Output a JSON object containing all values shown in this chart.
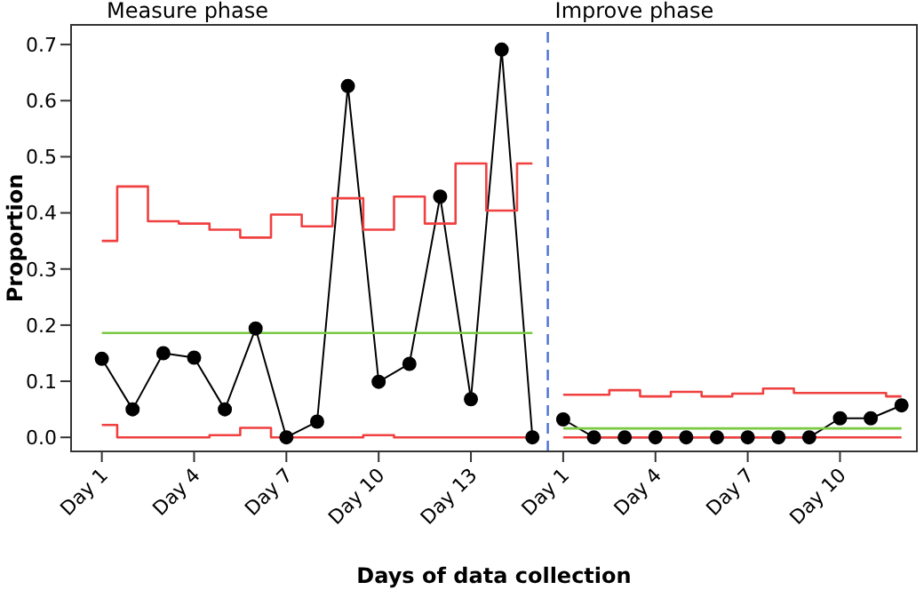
{
  "chart_data": {
    "type": "line",
    "xlabel": "Days of data collection",
    "ylabel": "Proportion",
    "categories": [
      "Day 1",
      null,
      null,
      "Day 4",
      null,
      null,
      "Day 7",
      null,
      null,
      "Day 10",
      null,
      null,
      "Day 13",
      null,
      null,
      "Day 1",
      null,
      null,
      "Day 4",
      null,
      null,
      "Day 7",
      null,
      null,
      "Day 10",
      null,
      null
    ],
    "series": [
      {
        "color": "#000000",
        "marker": "circle",
        "values": [
          0.14,
          0.05,
          0.15,
          0.142,
          0.05,
          0.194,
          0,
          0.028,
          0.626,
          0.099,
          0.131,
          0.429,
          0.068,
          0.691,
          0,
          null,
          null,
          null,
          null,
          null,
          null,
          null,
          null,
          null,
          null,
          null,
          null
        ]
      },
      {
        "color": "#000000",
        "marker": "circle",
        "values": [
          null,
          null,
          null,
          null,
          null,
          null,
          null,
          null,
          null,
          null,
          null,
          null,
          null,
          null,
          null,
          0.032,
          0,
          0,
          0,
          0,
          0,
          0,
          0,
          0,
          0.034,
          0.034,
          0.057
        ]
      },
      {
        "type": "step",
        "color": "#f04040",
        "marker": "none",
        "values": [
          0.35,
          0.447,
          0.385,
          0.381,
          0.37,
          0.356,
          0.397,
          0.376,
          0.426,
          0.37,
          0.429,
          0.381,
          0.488,
          0.404,
          0.488,
          null,
          null,
          null,
          null,
          null,
          null,
          null,
          null,
          null,
          null,
          null,
          null
        ]
      },
      {
        "type": "step",
        "color": "#f04040",
        "marker": "none",
        "values": [
          null,
          null,
          null,
          null,
          null,
          null,
          null,
          null,
          null,
          null,
          null,
          null,
          null,
          null,
          null,
          0.076,
          0.076,
          0.084,
          0.073,
          0.081,
          0.073,
          0.078,
          0.087,
          0.079,
          0.079,
          0.079,
          0.073
        ]
      },
      {
        "type": "step",
        "color": "#f04040",
        "marker": "none",
        "values": [
          0.022,
          0,
          0,
          0,
          0.004,
          0.017,
          0,
          0,
          0,
          0.004,
          0,
          0,
          0,
          0,
          0,
          null,
          null,
          null,
          null,
          null,
          null,
          null,
          null,
          null,
          null,
          null,
          null
        ]
      },
      {
        "type": "step",
        "color": "#f04040",
        "marker": "none",
        "values": [
          null,
          null,
          null,
          null,
          null,
          null,
          null,
          null,
          null,
          null,
          null,
          null,
          null,
          null,
          null,
          0,
          0,
          0,
          0,
          0,
          0,
          0,
          0,
          0,
          0,
          0,
          0
        ]
      },
      {
        "type": "step",
        "color": "#7ac943",
        "marker": "none",
        "values": [
          0.186,
          0.186,
          0.186,
          0.186,
          0.186,
          0.186,
          0.186,
          0.186,
          0.186,
          0.186,
          0.186,
          0.186,
          0.186,
          0.186,
          0.186,
          null,
          null,
          null,
          null,
          null,
          null,
          null,
          null,
          null,
          null,
          null,
          null
        ]
      },
      {
        "type": "step",
        "color": "#7ac943",
        "marker": "none",
        "values": [
          null,
          null,
          null,
          null,
          null,
          null,
          null,
          null,
          null,
          null,
          null,
          null,
          null,
          null,
          null,
          0.016,
          0.016,
          0.016,
          0.016,
          0.016,
          0.016,
          0.016,
          0.016,
          0.016,
          0.016,
          0.016,
          0.016
        ]
      }
    ],
    "ylim": [
      -0.025,
      0.735
    ],
    "yticks": [
      {
        "value": 0,
        "label": "0.0"
      },
      0.1,
      0.2,
      0.3,
      0.4,
      0.5,
      0.6,
      0.7
    ],
    "annotations": [
      "Measure phase",
      "Improve phase"
    ],
    "grid": false
  }
}
